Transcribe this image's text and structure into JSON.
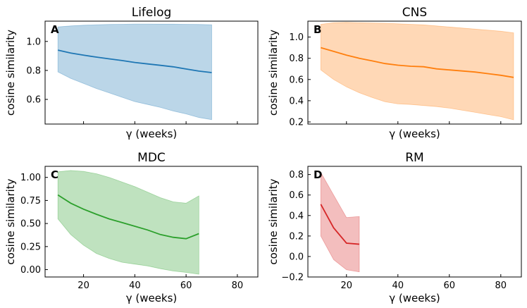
{
  "figure": {
    "shared_xlim": [
      5,
      88
    ],
    "shared_xticks": [
      20,
      40,
      60,
      80
    ]
  },
  "chart_data": [
    {
      "type": "line",
      "panel_letter": "A",
      "title": "Lifelog",
      "xlabel": "γ (weeks)",
      "ylabel": "cosine similarity",
      "color": "#1f77b4",
      "x": [
        10,
        15,
        20,
        25,
        30,
        35,
        40,
        45,
        50,
        55,
        60,
        65,
        70
      ],
      "mean": [
        0.94,
        0.92,
        0.905,
        0.892,
        0.88,
        0.868,
        0.855,
        0.845,
        0.835,
        0.825,
        0.81,
        0.795,
        0.785
      ],
      "upper": [
        1.1,
        1.107,
        1.112,
        1.115,
        1.117,
        1.118,
        1.12,
        1.12,
        1.119,
        1.119,
        1.118,
        1.117,
        1.115
      ],
      "lower": [
        0.79,
        0.745,
        0.71,
        0.675,
        0.645,
        0.615,
        0.585,
        0.565,
        0.545,
        0.52,
        0.5,
        0.475,
        0.46
      ],
      "xlim": [
        5,
        88
      ],
      "ylim": [
        0.43,
        1.14
      ],
      "yticks": [
        0.6,
        0.8,
        1.0
      ],
      "ytick_labels": [
        "0.6",
        "0.8",
        "1.0"
      ],
      "show_xticks": false
    },
    {
      "type": "line",
      "panel_letter": "B",
      "title": "CNS",
      "xlabel": "γ (weeks)",
      "ylabel": "cosine similarity",
      "color": "#ff7f0e",
      "x": [
        10,
        15,
        20,
        25,
        30,
        35,
        40,
        45,
        50,
        55,
        60,
        65,
        70,
        75,
        80,
        85
      ],
      "mean": [
        0.9,
        0.865,
        0.83,
        0.8,
        0.775,
        0.75,
        0.735,
        0.725,
        0.72,
        0.7,
        0.69,
        0.68,
        0.67,
        0.655,
        0.64,
        0.62
      ],
      "upper": [
        1.12,
        1.135,
        1.138,
        1.135,
        1.132,
        1.13,
        1.125,
        1.12,
        1.115,
        1.105,
        1.095,
        1.085,
        1.075,
        1.065,
        1.055,
        1.04
      ],
      "lower": [
        0.69,
        0.6,
        0.53,
        0.475,
        0.43,
        0.39,
        0.37,
        0.365,
        0.355,
        0.345,
        0.33,
        0.31,
        0.29,
        0.27,
        0.25,
        0.22
      ],
      "xlim": [
        5,
        88
      ],
      "ylim": [
        0.18,
        1.15
      ],
      "yticks": [
        0.2,
        0.4,
        0.6,
        0.8,
        1.0
      ],
      "ytick_labels": [
        "0.2",
        "0.4",
        "0.6",
        "0.8",
        "1.0"
      ],
      "show_xticks": false
    },
    {
      "type": "line",
      "panel_letter": "C",
      "title": "MDC",
      "xlabel": "γ (weeks)",
      "ylabel": "cosine similarity",
      "color": "#2ca02c",
      "x": [
        10,
        15,
        20,
        25,
        30,
        35,
        40,
        45,
        50,
        55,
        60,
        65
      ],
      "mean": [
        0.81,
        0.72,
        0.655,
        0.6,
        0.55,
        0.51,
        0.47,
        0.43,
        0.38,
        0.35,
        0.335,
        0.39
      ],
      "upper": [
        1.06,
        1.075,
        1.065,
        1.04,
        1.0,
        0.95,
        0.9,
        0.84,
        0.78,
        0.735,
        0.72,
        0.8
      ],
      "lower": [
        0.55,
        0.38,
        0.265,
        0.175,
        0.12,
        0.08,
        0.06,
        0.04,
        0.01,
        -0.015,
        -0.03,
        -0.05
      ],
      "xlim": [
        5,
        88
      ],
      "ylim": [
        -0.08,
        1.12
      ],
      "yticks": [
        0.0,
        0.25,
        0.5,
        0.75,
        1.0
      ],
      "ytick_labels": [
        "0.00",
        "0.25",
        "0.50",
        "0.75",
        "1.00"
      ],
      "show_xticks": true
    },
    {
      "type": "line",
      "panel_letter": "D",
      "title": "RM",
      "xlabel": "γ (weeks)",
      "ylabel": "cosine similarity",
      "color": "#d62728",
      "x": [
        10,
        15,
        20,
        25
      ],
      "mean": [
        0.51,
        0.28,
        0.13,
        0.12
      ],
      "upper": [
        0.82,
        0.6,
        0.38,
        0.39
      ],
      "lower": [
        0.2,
        -0.03,
        -0.13,
        -0.15
      ],
      "xlim": [
        5,
        88
      ],
      "ylim": [
        -0.2,
        0.88
      ],
      "yticks": [
        -0.2,
        0.0,
        0.2,
        0.4,
        0.6,
        0.8
      ],
      "ytick_labels": [
        "−0.2",
        "0.0",
        "0.2",
        "0.4",
        "0.6",
        "0.8"
      ],
      "show_xticks": true
    }
  ]
}
